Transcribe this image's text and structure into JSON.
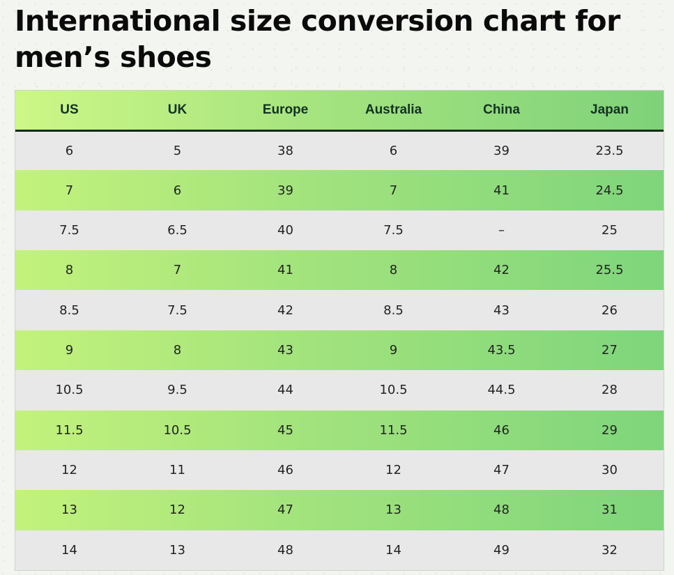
{
  "page": {
    "title": "International size conversion chart for men’s shoes"
  },
  "table": {
    "headers": [
      "US",
      "UK",
      "Europe",
      "Australia",
      "China",
      "Japan"
    ],
    "rows": [
      [
        "6",
        "5",
        "38",
        "6",
        "39",
        "23.5"
      ],
      [
        "7",
        "6",
        "39",
        "7",
        "41",
        "24.5"
      ],
      [
        "7.5",
        "6.5",
        "40",
        "7.5",
        "–",
        "25"
      ],
      [
        "8",
        "7",
        "41",
        "8",
        "42",
        "25.5"
      ],
      [
        "8.5",
        "7.5",
        "42",
        "8.5",
        "43",
        "26"
      ],
      [
        "9",
        "8",
        "43",
        "9",
        "43.5",
        "27"
      ],
      [
        "10.5",
        "9.5",
        "44",
        "10.5",
        "44.5",
        "28"
      ],
      [
        "11.5",
        "10.5",
        "45",
        "11.5",
        "46",
        "29"
      ],
      [
        "12",
        "11",
        "46",
        "12",
        "47",
        "30"
      ],
      [
        "13",
        "12",
        "47",
        "13",
        "48",
        "31"
      ],
      [
        "14",
        "13",
        "48",
        "14",
        "49",
        "32"
      ]
    ]
  },
  "colors": {
    "header_gradient_start": "#cdf787",
    "header_gradient_end": "#7fd27a",
    "row_light": "#e9e8e8",
    "row_green_start": "#c3f27c",
    "row_green_end": "#7ed57b",
    "header_rule": "#0f2a17"
  }
}
